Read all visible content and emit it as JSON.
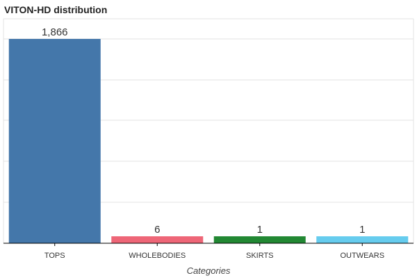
{
  "chart_data": {
    "type": "bar",
    "title": "VITON-HD distribution",
    "xlabel": "Categories",
    "ylabel": "",
    "categories": [
      "TOPS",
      "WHOLEBODIES",
      "SKIRTS",
      "OUTWEARS"
    ],
    "values": [
      1866,
      6,
      1,
      1
    ],
    "value_labels": [
      "1,866",
      "6",
      "1",
      "1"
    ],
    "colors": [
      "#4477aa",
      "#ee6677",
      "#228833",
      "#66ccee"
    ],
    "grid": true,
    "legend": "none"
  }
}
